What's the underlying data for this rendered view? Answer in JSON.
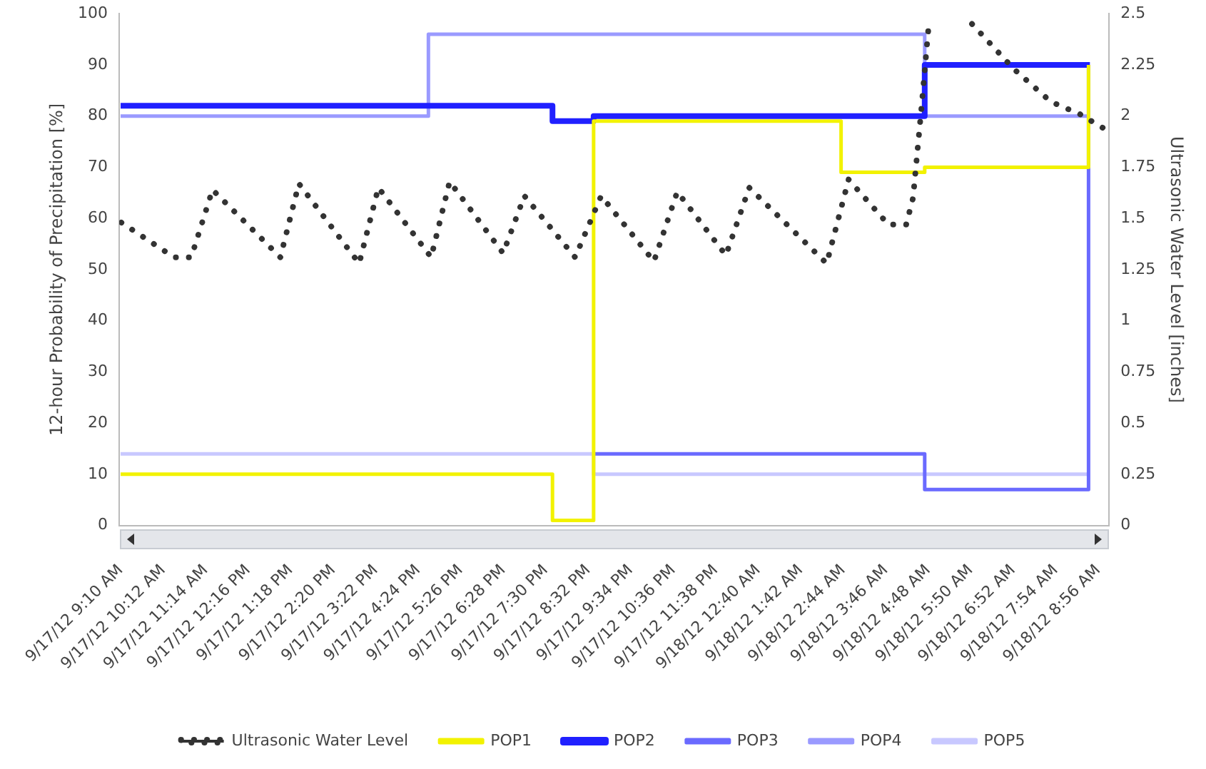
{
  "chart_data": {
    "type": "line",
    "ylabel": "12-hour Probability of Precipitation [%]",
    "y2label": "Ultrasonic Water Level [inches]",
    "xlim": [
      "--09-17T09:08",
      "--09-18T09:12"
    ],
    "xticks": [
      {
        "value": "--09-17T09:10",
        "label": "9/17/12 9:10 AM"
      },
      {
        "value": "--09-17T10:12",
        "label": "9/17/12 10:12 AM"
      },
      {
        "value": "--09-17T11:14",
        "label": "9/17/12 11:14 AM"
      },
      {
        "value": "--09-17T12:16",
        "label": "9/17/12 12:16 PM"
      },
      {
        "value": "--09-17T13:18",
        "label": "9/17/12 1:18 PM"
      },
      {
        "value": "--09-17T14:20",
        "label": "9/17/12 2:20 PM"
      },
      {
        "value": "--09-17T15:22",
        "label": "9/17/12 3:22 PM"
      },
      {
        "value": "--09-17T16:24",
        "label": "9/17/12 4:24 PM"
      },
      {
        "value": "--09-17T17:26",
        "label": "9/17/12 5:26 PM"
      },
      {
        "value": "--09-17T18:28",
        "label": "9/17/12 6:28 PM"
      },
      {
        "value": "--09-17T19:30",
        "label": "9/17/12 7:30 PM"
      },
      {
        "value": "--09-17T20:32",
        "label": "9/17/12 8:32 PM"
      },
      {
        "value": "--09-17T21:34",
        "label": "9/17/12 9:34 PM"
      },
      {
        "value": "--09-17T22:36",
        "label": "9/17/12 10:36 PM"
      },
      {
        "value": "--09-17T23:38",
        "label": "9/17/12 11:38 PM"
      },
      {
        "value": "--09-18T00:40",
        "label": "9/18/12 12:40 AM"
      },
      {
        "value": "--09-18T01:42",
        "label": "9/18/12 1:42 AM"
      },
      {
        "value": "--09-18T02:44",
        "label": "9/18/12 2:44 AM"
      },
      {
        "value": "--09-18T03:46",
        "label": "9/18/12 3:46 AM"
      },
      {
        "value": "--09-18T04:48",
        "label": "9/18/12 4:48 AM"
      },
      {
        "value": "--09-18T05:50",
        "label": "9/18/12 5:50 AM"
      },
      {
        "value": "--09-18T06:52",
        "label": "9/18/12 6:52 AM"
      },
      {
        "value": "--09-18T07:54",
        "label": "9/18/12 7:54 AM"
      },
      {
        "value": "--09-18T08:56",
        "label": "9/18/12 8:56 AM"
      }
    ],
    "ylim": [
      0,
      100
    ],
    "yticks": [
      0,
      10,
      20,
      30,
      40,
      50,
      60,
      70,
      80,
      90,
      100
    ],
    "y2lim": [
      0,
      2.5
    ],
    "y2ticks": [
      0,
      0.25,
      0.5,
      0.75,
      1,
      1.25,
      1.5,
      1.75,
      2,
      2.25,
      2.5
    ],
    "grid": false,
    "legend": "bottom",
    "marker": "none",
    "series": [
      {
        "name": "Ultrasonic Water Level",
        "type": "line",
        "axis": "y2",
        "line_style": "dotted",
        "color": "#333333",
        "x": [
          "--09-17T09:11",
          "--09-17T10:28",
          "--09-17T10:53",
          "--09-17T11:24",
          "--09-17T13:03",
          "--09-17T13:30",
          "--09-17T14:58",
          "--09-17T15:26",
          "--09-17T16:43",
          "--09-17T17:10",
          "--09-17T18:28",
          "--09-17T18:59",
          "--09-17T20:13",
          "--09-17T20:51",
          "--09-17T22:08",
          "--09-17T22:42",
          "--09-17T23:53",
          "--09-18T00:27",
          "--09-18T02:20",
          "--09-18T02:52",
          "--09-18T03:50",
          "--09-18T04:16",
          "--09-18T04:26",
          "--09-18T04:38",
          "--09-18T04:49",
          "--09-18T05:18",
          "--09-18T05:52",
          "--09-18T06:53",
          "--09-18T07:47",
          "--09-18T08:29",
          "--09-18T09:09"
        ],
        "values": [
          1.48,
          1.31,
          1.31,
          1.64,
          1.31,
          1.67,
          1.28,
          1.65,
          1.31,
          1.68,
          1.33,
          1.61,
          1.31,
          1.61,
          1.29,
          1.63,
          1.32,
          1.65,
          1.28,
          1.69,
          1.47,
          1.47,
          1.6,
          2.03,
          2.45,
          null,
          2.45,
          2.23,
          2.07,
          2.01,
          1.93
        ]
      },
      {
        "name": "POP1",
        "type": "step",
        "color": "#f2f200",
        "x": [
          "--09-17T09:10",
          "--09-17T19:40",
          "--09-17T20:40",
          "--09-18T02:41",
          "--09-18T04:43",
          "--09-18T08:42"
        ],
        "values": [
          10,
          1,
          79,
          69,
          70,
          90
        ]
      },
      {
        "name": "POP2",
        "type": "step",
        "color": "#2020ff",
        "x": [
          "--09-17T09:10",
          "--09-17T19:40",
          "--09-17T20:40",
          "--09-18T04:43",
          "--09-18T08:44"
        ],
        "values": [
          82,
          79,
          80,
          90,
          90
        ]
      },
      {
        "name": "POP3",
        "type": "step",
        "color": "#6a6aff",
        "x": [
          "--09-17T20:40",
          "--09-18T04:43",
          "--09-18T08:42"
        ],
        "values": [
          14,
          7,
          90
        ]
      },
      {
        "name": "POP4",
        "type": "step",
        "color": "#9a9aff",
        "x": [
          "--09-17T09:10",
          "--09-17T16:39",
          "--09-18T04:43",
          "--09-18T08:44"
        ],
        "values": [
          80,
          96,
          80,
          80
        ]
      },
      {
        "name": "POP5",
        "type": "step",
        "color": "#c8c8ff",
        "x": [
          "--09-17T09:10",
          "--09-17T20:40",
          "--09-18T08:44"
        ],
        "values": [
          14,
          10,
          10
        ]
      }
    ]
  }
}
